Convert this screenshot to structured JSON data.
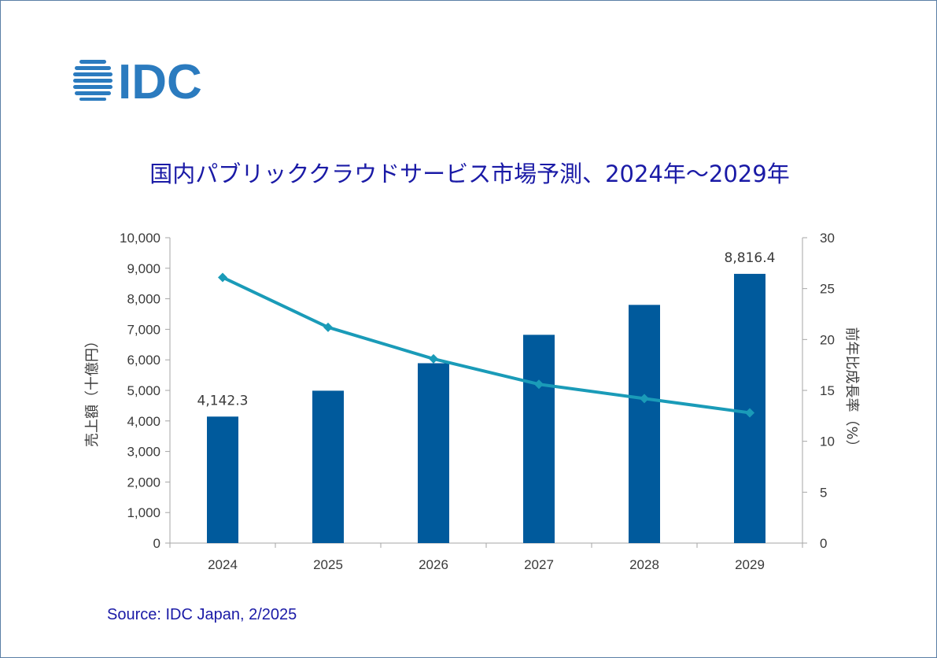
{
  "logo": {
    "text": "IDC",
    "color": "#2b7bbf"
  },
  "source": "Source: IDC Japan, 2/2025",
  "chart_data": {
    "type": "bar",
    "title": "国内パブリッククラウドサービス市場予測、2024年～2029年",
    "categories": [
      "2024",
      "2025",
      "2026",
      "2027",
      "2028",
      "2029"
    ],
    "series": [
      {
        "type": "bar",
        "axis": "left",
        "values": [
          4142.3,
          4990,
          5890,
          6820,
          7800,
          8816.4
        ],
        "color": "#005a9c",
        "data_labels": [
          "4,142.3",
          "",
          "",
          "",
          "",
          "8,816.4"
        ]
      },
      {
        "type": "line",
        "axis": "right",
        "values": [
          26.1,
          21.2,
          18.1,
          15.6,
          14.2,
          12.8
        ],
        "color": "#1a9bb8",
        "marker": "diamond"
      }
    ],
    "ylabel": "売上額（十億円）",
    "ylabel_right": "前年比成長率（%）",
    "ylim": [
      0,
      10000
    ],
    "ylim_right": [
      0,
      30
    ],
    "yticks": [
      "0",
      "1,000",
      "2,000",
      "3,000",
      "4,000",
      "5,000",
      "6,000",
      "7,000",
      "8,000",
      "9,000",
      "10,000"
    ],
    "yticks_right": [
      "0",
      "5",
      "10",
      "15",
      "20",
      "25",
      "30"
    ],
    "grid": false,
    "legend": "none"
  }
}
